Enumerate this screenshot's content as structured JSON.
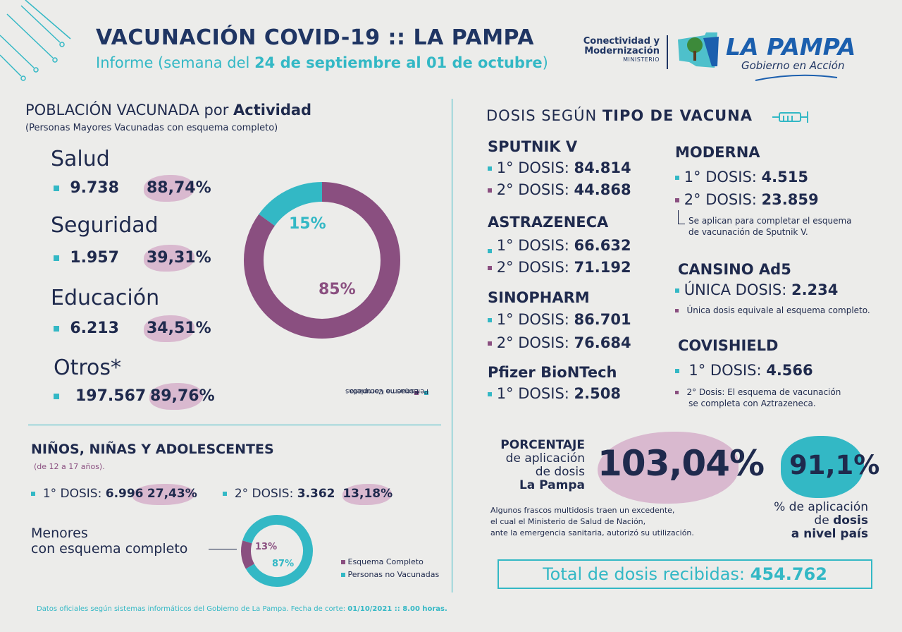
{
  "header": {
    "title": "VACUNACIÓN COVID-19 :: LA PAMPA",
    "subtitle_prefix": "Informe (semana del ",
    "subtitle_range": "24 de septiembre al 01 de octubre",
    "subtitle_suffix": ")"
  },
  "logo": {
    "ministry_line1": "Conectividad y",
    "ministry_line2": "Modernización",
    "ministry_line3": "MINISTERIO",
    "name": "LA PAMPA",
    "tagline": "Gobierno en Acción"
  },
  "poblacion": {
    "title_prefix": "POBLACIÓN VACUNADA por ",
    "title_bold": "Actividad",
    "subtitle": "(Personas Mayores Vacunadas con esquema completo)",
    "activities": [
      {
        "name": "Salud",
        "count": "9.738",
        "percent": "88,74%"
      },
      {
        "name": "Seguridad",
        "count": "1.957",
        "percent": "39,31%"
      },
      {
        "name": "Educación",
        "count": "6.213",
        "percent": "34,51%"
      },
      {
        "name": "Otros*",
        "count": "197.567",
        "percent": "89,76%"
      }
    ],
    "legend_completo": "Esquema Completo",
    "legend_no_vacunadas": "Personas no Vacunadas"
  },
  "nna": {
    "title": "NIÑOS, NIÑAS Y ADOLESCENTES",
    "subtitle": "(de 12 a 17 años).",
    "dose1_label": "1° DOSIS: ",
    "dose1_value": "6.996",
    "dose1_pct": "27,43%",
    "dose2_label": "2° DOSIS: ",
    "dose2_value": "3.362",
    "dose2_pct": "13,18%",
    "menores_line1": "Menores",
    "menores_line2": "con esquema completo",
    "legend_completo": "Esquema Completo",
    "legend_no_vacunadas": "Personas no Vacunadas"
  },
  "dosis": {
    "title_prefix": "DOSIS SEGÚN ",
    "title_bold": "TIPO DE VACUNA",
    "sputnik": {
      "name": "SPUTNIK V",
      "d1_label": "1° DOSIS: ",
      "d1": "84.814",
      "d2_label": "2° DOSIS: ",
      "d2": "44.868"
    },
    "astrazeneca": {
      "name": "ASTRAZENECA",
      "d1_label": "1° DOSIS: ",
      "d1": "66.632",
      "d2_label": "2° DOSIS: ",
      "d2": "71.192"
    },
    "sinopharm": {
      "name": "SINOPHARM",
      "d1_label": "1° DOSIS: ",
      "d1": "86.701",
      "d2_label": "2° DOSIS: ",
      "d2": "76.684"
    },
    "pfizer": {
      "name": "Pfizer BioNTech",
      "d1_label": "1° DOSIS: ",
      "d1": "2.508"
    },
    "moderna": {
      "name": "MODERNA",
      "d1_label": "1° DOSIS: ",
      "d1": "4.515",
      "d2_label": "2° DOSIS: ",
      "d2": "23.859",
      "note_line1": "Se aplican para completar el esquema",
      "note_line2": "de vacunación de Sputnik V."
    },
    "cansino": {
      "name": "CANSINO Ad5",
      "d1_label": "ÚNICA DOSIS: ",
      "d1": "2.234",
      "note": "Única dosis equivale al esquema completo."
    },
    "covishield": {
      "name": "COVISHIELD",
      "d1_label": "1° DOSIS: ",
      "d1": "4.566",
      "note_line1": "2° Dosis: El esquema de vacunación",
      "note_line2": "se completa con Aztrazeneca."
    }
  },
  "porcentaje": {
    "line1": "PORCENTAJE",
    "line2": "de aplicación",
    "line3": "de dosis",
    "line4": "La Pampa",
    "value": "103,04%",
    "note_line1": "Algunos frascos multidosis traen un excedente,",
    "note_line2": "el cual el Ministerio de Salud de Nación,",
    "note_line3": "ante la emergencia sanitaria, autorizó su utilización.",
    "national_value": "91,1%",
    "national_line1": "% de aplicación",
    "national_line2_prefix": "de ",
    "national_line2_bold": "dosis",
    "national_line3": "a nivel país"
  },
  "total": {
    "label": "Total de dosis recibidas: ",
    "value": "454.762"
  },
  "footer": {
    "text": "Datos oficiales según sistemas informáticos del Gobierno de La Pampa. Fecha de corte: ",
    "date": "01/10/2021 :: 8.00 horas."
  },
  "chart_data": [
    {
      "type": "pie",
      "title": "Población vacunada por actividad",
      "categories": [
        "Esquema Completo",
        "Personas no Vacunadas"
      ],
      "values": [
        85,
        15
      ],
      "labels": [
        "85%",
        "15%"
      ],
      "colors": [
        "#8a4f80",
        "#33b8c5"
      ]
    },
    {
      "type": "pie",
      "title": "Menores con esquema completo",
      "categories": [
        "Esquema Completo",
        "Personas no Vacunadas"
      ],
      "values": [
        13,
        87
      ],
      "labels": [
        "13%",
        "87%"
      ],
      "colors": [
        "#8a4f80",
        "#33b8c5"
      ]
    }
  ]
}
